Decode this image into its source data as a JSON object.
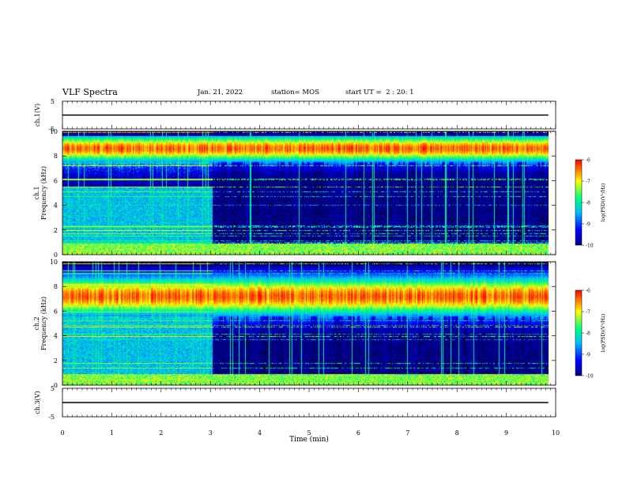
{
  "header": {
    "title": "VLF Spectra",
    "date": "Jan. 21, 2022",
    "station": "station= MOS",
    "start_ut": "start UT =  2 : 20: 1"
  },
  "chart_data": [
    {
      "type": "line",
      "panel": "ch1-waveform",
      "ylabel": "ch.1(V)",
      "ylim": [
        -5,
        5
      ],
      "y_ticks": [
        "5",
        "-5"
      ],
      "series": [
        {
          "x": [
            0,
            9.85
          ],
          "y": [
            0,
            0
          ]
        }
      ]
    },
    {
      "type": "heatmap",
      "panel": "ch1-spectrogram",
      "ylabel": "ch.1\nFrequency (kHz)",
      "ylim": [
        0,
        10
      ],
      "y_ticks": [
        "0",
        "2",
        "4",
        "6",
        "8",
        "10"
      ],
      "x_extent": [
        0,
        9.85
      ],
      "colorbar": {
        "label": "log(PSD)(V²/Hz)",
        "range": [
          -10,
          -6
        ],
        "ticks": [
          "-6",
          "-7",
          "-8",
          "-9",
          "-10"
        ]
      }
    },
    {
      "type": "heatmap",
      "panel": "ch2-spectrogram",
      "ylabel": "ch.2\nFrequency (kHz)",
      "ylim": [
        0,
        10
      ],
      "y_ticks": [
        "0",
        "2",
        "4",
        "6",
        "8",
        "10"
      ],
      "x_extent": [
        0,
        9.85
      ],
      "colorbar": {
        "label": "log(PSD)(V²/Hz)",
        "range": [
          -10,
          -6
        ],
        "ticks": [
          "-6",
          "-7",
          "-8",
          "-9",
          "-10"
        ]
      }
    },
    {
      "type": "line",
      "panel": "ch3-waveform",
      "ylabel": "ch.3(V)",
      "ylim": [
        -5,
        5
      ],
      "y_ticks": [
        "5",
        "-5"
      ],
      "series": [
        {
          "x": [
            0,
            9.85
          ],
          "y": [
            0,
            0
          ]
        }
      ]
    }
  ],
  "x_axis": {
    "label": "Time (min)",
    "range": [
      0,
      10
    ],
    "ticks": [
      "0",
      "1",
      "2",
      "3",
      "4",
      "5",
      "6",
      "7",
      "8",
      "9",
      "10"
    ]
  },
  "colors": {
    "colormap": [
      "#000080",
      "#0000ff",
      "#00bfff",
      "#00ff7f",
      "#ffff00",
      "#ff0000"
    ],
    "background_low": "#00002a",
    "trace": "#000000"
  }
}
